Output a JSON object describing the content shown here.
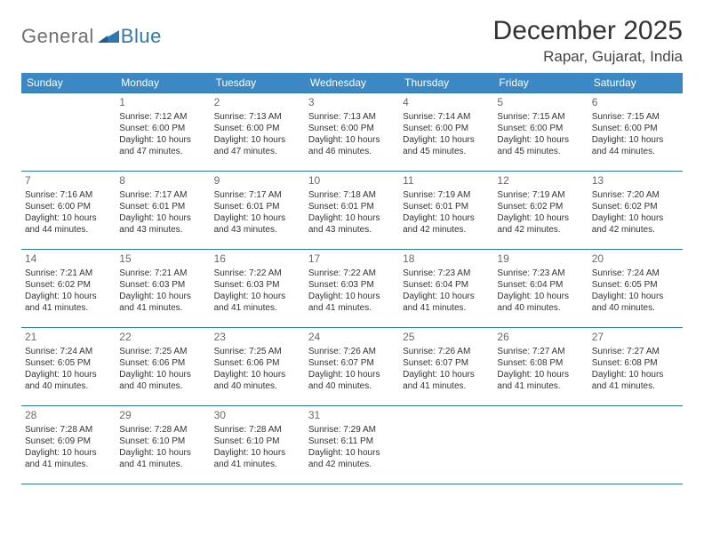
{
  "logo": {
    "text1": "General",
    "text2": "Blue"
  },
  "title": "December 2025",
  "location": "Rapar, Gujarat, India",
  "colors": {
    "header_bg": "#3b88c4",
    "header_text": "#ffffff",
    "row_border": "#2d77b5",
    "logo_gray": "#6f6f6f",
    "logo_blue": "#2d77b5",
    "text": "#333333",
    "daynum": "#6a6a6a",
    "background": "#ffffff"
  },
  "typography": {
    "title_fontsize": 30,
    "location_fontsize": 17,
    "dayheader_fontsize": 12,
    "daynum_fontsize": 12,
    "cell_fontsize": 10,
    "logo_fontsize": 22
  },
  "day_headers": [
    "Sunday",
    "Monday",
    "Tuesday",
    "Wednesday",
    "Thursday",
    "Friday",
    "Saturday"
  ],
  "weeks": [
    [
      {
        "n": "",
        "lines": []
      },
      {
        "n": "1",
        "lines": [
          "Sunrise: 7:12 AM",
          "Sunset: 6:00 PM",
          "Daylight: 10 hours",
          "and 47 minutes."
        ]
      },
      {
        "n": "2",
        "lines": [
          "Sunrise: 7:13 AM",
          "Sunset: 6:00 PM",
          "Daylight: 10 hours",
          "and 47 minutes."
        ]
      },
      {
        "n": "3",
        "lines": [
          "Sunrise: 7:13 AM",
          "Sunset: 6:00 PM",
          "Daylight: 10 hours",
          "and 46 minutes."
        ]
      },
      {
        "n": "4",
        "lines": [
          "Sunrise: 7:14 AM",
          "Sunset: 6:00 PM",
          "Daylight: 10 hours",
          "and 45 minutes."
        ]
      },
      {
        "n": "5",
        "lines": [
          "Sunrise: 7:15 AM",
          "Sunset: 6:00 PM",
          "Daylight: 10 hours",
          "and 45 minutes."
        ]
      },
      {
        "n": "6",
        "lines": [
          "Sunrise: 7:15 AM",
          "Sunset: 6:00 PM",
          "Daylight: 10 hours",
          "and 44 minutes."
        ]
      }
    ],
    [
      {
        "n": "7",
        "lines": [
          "Sunrise: 7:16 AM",
          "Sunset: 6:00 PM",
          "Daylight: 10 hours",
          "and 44 minutes."
        ]
      },
      {
        "n": "8",
        "lines": [
          "Sunrise: 7:17 AM",
          "Sunset: 6:01 PM",
          "Daylight: 10 hours",
          "and 43 minutes."
        ]
      },
      {
        "n": "9",
        "lines": [
          "Sunrise: 7:17 AM",
          "Sunset: 6:01 PM",
          "Daylight: 10 hours",
          "and 43 minutes."
        ]
      },
      {
        "n": "10",
        "lines": [
          "Sunrise: 7:18 AM",
          "Sunset: 6:01 PM",
          "Daylight: 10 hours",
          "and 43 minutes."
        ]
      },
      {
        "n": "11",
        "lines": [
          "Sunrise: 7:19 AM",
          "Sunset: 6:01 PM",
          "Daylight: 10 hours",
          "and 42 minutes."
        ]
      },
      {
        "n": "12",
        "lines": [
          "Sunrise: 7:19 AM",
          "Sunset: 6:02 PM",
          "Daylight: 10 hours",
          "and 42 minutes."
        ]
      },
      {
        "n": "13",
        "lines": [
          "Sunrise: 7:20 AM",
          "Sunset: 6:02 PM",
          "Daylight: 10 hours",
          "and 42 minutes."
        ]
      }
    ],
    [
      {
        "n": "14",
        "lines": [
          "Sunrise: 7:21 AM",
          "Sunset: 6:02 PM",
          "Daylight: 10 hours",
          "and 41 minutes."
        ]
      },
      {
        "n": "15",
        "lines": [
          "Sunrise: 7:21 AM",
          "Sunset: 6:03 PM",
          "Daylight: 10 hours",
          "and 41 minutes."
        ]
      },
      {
        "n": "16",
        "lines": [
          "Sunrise: 7:22 AM",
          "Sunset: 6:03 PM",
          "Daylight: 10 hours",
          "and 41 minutes."
        ]
      },
      {
        "n": "17",
        "lines": [
          "Sunrise: 7:22 AM",
          "Sunset: 6:03 PM",
          "Daylight: 10 hours",
          "and 41 minutes."
        ]
      },
      {
        "n": "18",
        "lines": [
          "Sunrise: 7:23 AM",
          "Sunset: 6:04 PM",
          "Daylight: 10 hours",
          "and 41 minutes."
        ]
      },
      {
        "n": "19",
        "lines": [
          "Sunrise: 7:23 AM",
          "Sunset: 6:04 PM",
          "Daylight: 10 hours",
          "and 40 minutes."
        ]
      },
      {
        "n": "20",
        "lines": [
          "Sunrise: 7:24 AM",
          "Sunset: 6:05 PM",
          "Daylight: 10 hours",
          "and 40 minutes."
        ]
      }
    ],
    [
      {
        "n": "21",
        "lines": [
          "Sunrise: 7:24 AM",
          "Sunset: 6:05 PM",
          "Daylight: 10 hours",
          "and 40 minutes."
        ]
      },
      {
        "n": "22",
        "lines": [
          "Sunrise: 7:25 AM",
          "Sunset: 6:06 PM",
          "Daylight: 10 hours",
          "and 40 minutes."
        ]
      },
      {
        "n": "23",
        "lines": [
          "Sunrise: 7:25 AM",
          "Sunset: 6:06 PM",
          "Daylight: 10 hours",
          "and 40 minutes."
        ]
      },
      {
        "n": "24",
        "lines": [
          "Sunrise: 7:26 AM",
          "Sunset: 6:07 PM",
          "Daylight: 10 hours",
          "and 40 minutes."
        ]
      },
      {
        "n": "25",
        "lines": [
          "Sunrise: 7:26 AM",
          "Sunset: 6:07 PM",
          "Daylight: 10 hours",
          "and 41 minutes."
        ]
      },
      {
        "n": "26",
        "lines": [
          "Sunrise: 7:27 AM",
          "Sunset: 6:08 PM",
          "Daylight: 10 hours",
          "and 41 minutes."
        ]
      },
      {
        "n": "27",
        "lines": [
          "Sunrise: 7:27 AM",
          "Sunset: 6:08 PM",
          "Daylight: 10 hours",
          "and 41 minutes."
        ]
      }
    ],
    [
      {
        "n": "28",
        "lines": [
          "Sunrise: 7:28 AM",
          "Sunset: 6:09 PM",
          "Daylight: 10 hours",
          "and 41 minutes."
        ]
      },
      {
        "n": "29",
        "lines": [
          "Sunrise: 7:28 AM",
          "Sunset: 6:10 PM",
          "Daylight: 10 hours",
          "and 41 minutes."
        ]
      },
      {
        "n": "30",
        "lines": [
          "Sunrise: 7:28 AM",
          "Sunset: 6:10 PM",
          "Daylight: 10 hours",
          "and 41 minutes."
        ]
      },
      {
        "n": "31",
        "lines": [
          "Sunrise: 7:29 AM",
          "Sunset: 6:11 PM",
          "Daylight: 10 hours",
          "and 42 minutes."
        ]
      },
      {
        "n": "",
        "lines": []
      },
      {
        "n": "",
        "lines": []
      },
      {
        "n": "",
        "lines": []
      }
    ]
  ]
}
